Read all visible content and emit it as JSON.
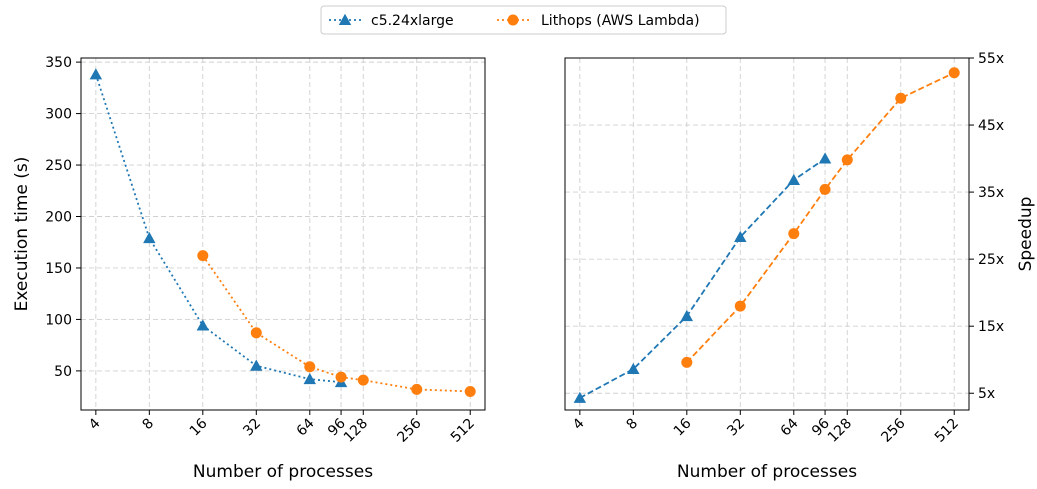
{
  "chart_data": [
    {
      "type": "line",
      "xscale": "log2",
      "xlabel": "Number of processes",
      "ylabel": "Execution time (s)",
      "xticks": [
        4,
        8,
        16,
        32,
        64,
        96,
        128,
        256,
        512
      ],
      "xtick_labels": [
        "4",
        "8",
        "16",
        "32",
        "64",
        "96",
        "128",
        "256",
        "512"
      ],
      "yticks": [
        50,
        100,
        150,
        200,
        250,
        300,
        350
      ],
      "ytick_labels": [
        "50",
        "100",
        "150",
        "200",
        "250",
        "300",
        "350"
      ],
      "ylim": [
        12,
        354
      ],
      "xlim": [
        3.3,
        620
      ],
      "grid": true,
      "series": [
        {
          "name": "c5.24xlarge",
          "color": "#1f77b4",
          "marker": "triangle",
          "linestyle": "dotted",
          "x": [
            4,
            8,
            16,
            32,
            64,
            96
          ],
          "y": [
            338,
            179,
            94,
            55,
            42,
            39
          ]
        },
        {
          "name": "Lithops (AWS Lambda)",
          "color": "#ff7f0e",
          "marker": "circle",
          "linestyle": "dotted",
          "x": [
            16,
            32,
            64,
            96,
            128,
            256,
            512
          ],
          "y": [
            162,
            87,
            54,
            44,
            41,
            32,
            30
          ]
        }
      ]
    },
    {
      "type": "line",
      "xscale": "log2",
      "xlabel": "Number of processes",
      "ylabel": "Speedup",
      "yaxis_position": "right",
      "xticks": [
        4,
        8,
        16,
        32,
        64,
        96,
        128,
        256,
        512
      ],
      "xtick_labels": [
        "4",
        "8",
        "16",
        "32",
        "64",
        "96",
        "128",
        "256",
        "512"
      ],
      "yticks": [
        5,
        15,
        25,
        35,
        45,
        55
      ],
      "ytick_labels": [
        "5x",
        "15x",
        "25x",
        "35x",
        "45x",
        "55x"
      ],
      "ylim": [
        2.5,
        55
      ],
      "xlim": [
        3.3,
        620
      ],
      "grid": true,
      "series": [
        {
          "name": "c5.24xlarge",
          "color": "#1f77b4",
          "marker": "triangle",
          "linestyle": "dashed",
          "x": [
            4,
            8,
            16,
            32,
            64,
            96
          ],
          "y": [
            4.3,
            8.6,
            16.5,
            28.3,
            36.8,
            40
          ]
        },
        {
          "name": "Lithops (AWS Lambda)",
          "color": "#ff7f0e",
          "marker": "circle",
          "linestyle": "dashed",
          "x": [
            16,
            32,
            64,
            96,
            128,
            256,
            512
          ],
          "y": [
            9.6,
            18,
            28.8,
            35.4,
            39.8,
            49,
            52.8
          ]
        }
      ]
    }
  ],
  "legend": {
    "placement": "top-center",
    "entries": [
      "c5.24xlarge",
      "Lithops (AWS Lambda)"
    ]
  }
}
